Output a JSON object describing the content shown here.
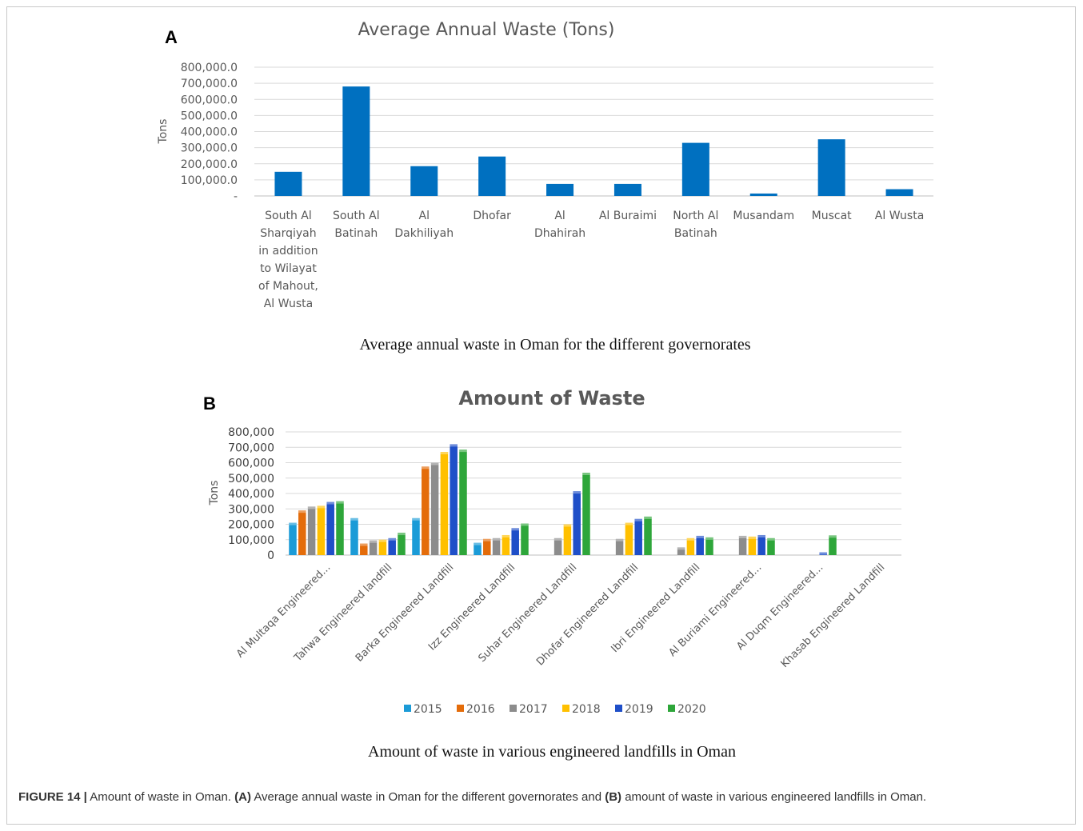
{
  "panel_a": {
    "letter": "A",
    "caption": "Average annual waste in Oman for the different governorates"
  },
  "panel_b": {
    "letter": "B",
    "caption": "Amount of waste in various engineered landfills in Oman"
  },
  "figure_caption": {
    "label": "FIGURE 14 |",
    "text_1": " Amount of waste in Oman. ",
    "a_marker": "(A)",
    "text_2": " Average annual waste in Oman for the different governorates and ",
    "b_marker": "(B)",
    "text_3": " amount of waste in various engineered landfills in Oman."
  },
  "chart_data": [
    {
      "type": "bar",
      "title": "Average Annual Waste (Tons)",
      "ylabel": "Tons",
      "xlabel": "",
      "ylim": [
        0,
        800000
      ],
      "yticks": [
        0,
        100000,
        200000,
        300000,
        400000,
        500000,
        600000,
        700000,
        800000
      ],
      "ytick_labels": [
        "-",
        "100,000.0",
        "200,000.0",
        "300,000.0",
        "400,000.0",
        "500,000.0",
        "600,000.0",
        "700,000.0",
        "800,000.0"
      ],
      "grid": true,
      "color": "#0070C0",
      "categories": [
        [
          "South Al",
          "Sharqiyah",
          "in addition",
          "to Wilayat",
          "of Mahout,",
          "Al Wusta"
        ],
        [
          "South Al",
          "Batinah"
        ],
        [
          "Al",
          "Dakhiliyah"
        ],
        [
          "Dhofar"
        ],
        [
          "Al",
          "Dhahirah"
        ],
        [
          "Al Buraimi"
        ],
        [
          "North Al",
          "Batinah"
        ],
        [
          "Musandam"
        ],
        [
          "Muscat"
        ],
        [
          "Al Wusta"
        ]
      ],
      "values": [
        150000,
        680000,
        185000,
        245000,
        75000,
        75000,
        330000,
        15000,
        352000,
        42000
      ]
    },
    {
      "type": "bar",
      "title": "Amount of Waste",
      "ylabel": "Tons",
      "xlabel": "",
      "ylim": [
        0,
        800000
      ],
      "yticks": [
        0,
        100000,
        200000,
        300000,
        400000,
        500000,
        600000,
        700000,
        800000
      ],
      "ytick_labels": [
        "0",
        "100,000",
        "200,000",
        "300,000",
        "400,000",
        "500,000",
        "600,000",
        "700,000",
        "800,000"
      ],
      "grid": true,
      "legend_position": "bottom",
      "categories": [
        "Al Multaqa Engineered...",
        "Tahwa Engineered landfill",
        "Barka Engineered Landfill",
        "Izz Engineered Landfill",
        "Suhar Engineered Landfill",
        "Dhofar Engineered Landfill",
        "Ibri Engineered Landfill",
        "Al Buriami Engineered...",
        "Al Duqm Engineered...",
        "Khasab Engineered Landfill"
      ],
      "series": [
        {
          "name": "2015",
          "color": "#1B9BD7",
          "values": [
            210000,
            240000,
            240000,
            80000,
            0,
            0,
            0,
            0,
            0,
            0
          ]
        },
        {
          "name": "2016",
          "color": "#E46C0A",
          "values": [
            290000,
            75000,
            575000,
            105000,
            0,
            0,
            0,
            0,
            0,
            0
          ]
        },
        {
          "name": "2017",
          "color": "#8C8C8C",
          "values": [
            315000,
            95000,
            600000,
            110000,
            110000,
            105000,
            50000,
            125000,
            0,
            0
          ]
        },
        {
          "name": "2018",
          "color": "#FFC000",
          "values": [
            320000,
            100000,
            670000,
            130000,
            200000,
            210000,
            110000,
            120000,
            0,
            0
          ]
        },
        {
          "name": "2019",
          "color": "#1F4FC8",
          "values": [
            345000,
            110000,
            720000,
            175000,
            415000,
            235000,
            125000,
            130000,
            18000,
            0
          ]
        },
        {
          "name": "2020",
          "color": "#2EA63A",
          "values": [
            350000,
            145000,
            685000,
            205000,
            535000,
            250000,
            115000,
            110000,
            128000,
            0
          ]
        }
      ]
    }
  ]
}
